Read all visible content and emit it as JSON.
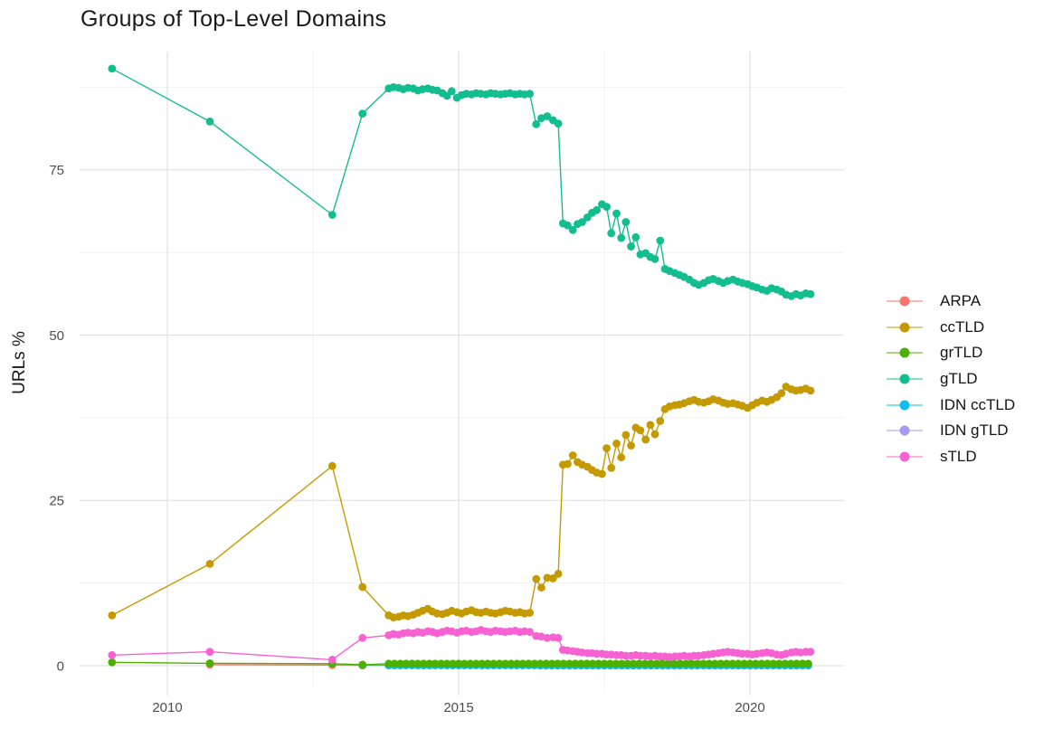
{
  "title": "Groups of Top-Level Domains",
  "axes": {
    "y_label": "URLs %",
    "x_tick_labels": [
      "2010",
      "2015",
      "2020"
    ],
    "y_tick_labels": [
      "0",
      "25",
      "50",
      "75"
    ]
  },
  "legend": {
    "items": [
      {
        "label": "ARPA",
        "color": "#F8766D"
      },
      {
        "label": "ccTLD",
        "color": "#C49A00"
      },
      {
        "label": "grTLD",
        "color": "#4CB000"
      },
      {
        "label": "gTLD",
        "color": "#12BE8D"
      },
      {
        "label": "IDN ccTLD",
        "color": "#0FBDEB"
      },
      {
        "label": "IDN gTLD",
        "color": "#A79BF2"
      },
      {
        "label": "sTLD",
        "color": "#F762D2"
      }
    ]
  },
  "chart_data": {
    "type": "line",
    "title": "Groups of Top-Level Domains",
    "xlabel": "",
    "ylabel": "URLs %",
    "xlim": [
      2008.5,
      2021.6
    ],
    "ylim": [
      -1,
      93
    ],
    "x_ticks": [
      2010,
      2015,
      2020
    ],
    "x_minor": [
      2012.5,
      2017.5
    ],
    "y_ticks": [
      0,
      25,
      50,
      75
    ],
    "y_minor": [
      12.5,
      37.5,
      62.5,
      87.5
    ],
    "grid": true,
    "legend_position": "right",
    "series": [
      {
        "name": "ARPA",
        "color": "#F8766D",
        "points": [
          [
            2010.73,
            0.15
          ],
          [
            2012.83,
            0.1
          ],
          [
            2013.35,
            0.05
          ]
        ]
      },
      {
        "name": "ccTLD",
        "color": "#C49A00",
        "points": [
          [
            2009.05,
            7.6
          ],
          [
            2010.73,
            15.4
          ],
          [
            2012.83,
            30.2
          ],
          [
            2013.35,
            11.9
          ],
          [
            2013.8,
            7.6
          ],
          [
            2013.88,
            7.3
          ],
          [
            2013.97,
            7.4
          ],
          [
            2014.05,
            7.6
          ],
          [
            2014.13,
            7.5
          ],
          [
            2014.22,
            7.7
          ],
          [
            2014.3,
            8.0
          ],
          [
            2014.38,
            8.3
          ],
          [
            2014.47,
            8.6
          ],
          [
            2014.55,
            8.2
          ],
          [
            2014.63,
            7.9
          ],
          [
            2014.72,
            7.8
          ],
          [
            2014.8,
            8.0
          ],
          [
            2014.88,
            8.3
          ],
          [
            2014.97,
            8.1
          ],
          [
            2015.05,
            7.9
          ],
          [
            2015.13,
            8.2
          ],
          [
            2015.22,
            8.4
          ],
          [
            2015.3,
            8.1
          ],
          [
            2015.38,
            8.0
          ],
          [
            2015.47,
            8.2
          ],
          [
            2015.55,
            8.0
          ],
          [
            2015.63,
            7.9
          ],
          [
            2015.72,
            8.1
          ],
          [
            2015.8,
            8.3
          ],
          [
            2015.88,
            8.2
          ],
          [
            2015.97,
            8.0
          ],
          [
            2016.05,
            8.1
          ],
          [
            2016.13,
            7.9
          ],
          [
            2016.22,
            8.0
          ],
          [
            2016.33,
            13.1
          ],
          [
            2016.42,
            11.8
          ],
          [
            2016.52,
            13.3
          ],
          [
            2016.62,
            13.2
          ],
          [
            2016.71,
            13.9
          ],
          [
            2016.79,
            30.4
          ],
          [
            2016.87,
            30.5
          ],
          [
            2016.96,
            31.8
          ],
          [
            2017.04,
            30.8
          ],
          [
            2017.12,
            30.4
          ],
          [
            2017.21,
            30.1
          ],
          [
            2017.29,
            29.6
          ],
          [
            2017.37,
            29.2
          ],
          [
            2017.46,
            29.0
          ],
          [
            2017.54,
            32.9
          ],
          [
            2017.62,
            29.9
          ],
          [
            2017.71,
            33.6
          ],
          [
            2017.79,
            31.5
          ],
          [
            2017.87,
            34.9
          ],
          [
            2017.96,
            33.3
          ],
          [
            2018.04,
            36.0
          ],
          [
            2018.12,
            35.6
          ],
          [
            2018.21,
            34.2
          ],
          [
            2018.29,
            36.4
          ],
          [
            2018.37,
            35.0
          ],
          [
            2018.46,
            37.0
          ],
          [
            2018.54,
            38.8
          ],
          [
            2018.62,
            39.2
          ],
          [
            2018.71,
            39.4
          ],
          [
            2018.79,
            39.5
          ],
          [
            2018.87,
            39.7
          ],
          [
            2018.96,
            40.0
          ],
          [
            2019.04,
            40.2
          ],
          [
            2019.12,
            39.9
          ],
          [
            2019.21,
            39.8
          ],
          [
            2019.29,
            40.0
          ],
          [
            2019.37,
            40.3
          ],
          [
            2019.46,
            40.1
          ],
          [
            2019.54,
            39.8
          ],
          [
            2019.62,
            39.6
          ],
          [
            2019.71,
            39.7
          ],
          [
            2019.79,
            39.5
          ],
          [
            2019.87,
            39.3
          ],
          [
            2019.96,
            39.0
          ],
          [
            2020.04,
            39.4
          ],
          [
            2020.12,
            39.8
          ],
          [
            2020.21,
            40.1
          ],
          [
            2020.29,
            39.9
          ],
          [
            2020.37,
            40.2
          ],
          [
            2020.46,
            40.6
          ],
          [
            2020.54,
            41.2
          ],
          [
            2020.62,
            42.2
          ],
          [
            2020.71,
            41.8
          ],
          [
            2020.79,
            41.6
          ],
          [
            2020.87,
            41.7
          ],
          [
            2020.96,
            41.9
          ],
          [
            2021.04,
            41.6
          ]
        ]
      },
      {
        "name": "grTLD",
        "color": "#4CB000",
        "points": [
          [
            2009.05,
            0.5
          ],
          [
            2010.73,
            0.35
          ],
          [
            2012.83,
            0.3
          ],
          [
            2013.35,
            0.15
          ]
        ],
        "flat": {
          "from": 2013.8,
          "to": 2021.05,
          "step": 0.1,
          "value": 0.3
        }
      },
      {
        "name": "gTLD",
        "color": "#12BE8D",
        "points": [
          [
            2009.05,
            90.3
          ],
          [
            2010.73,
            82.3
          ],
          [
            2012.83,
            68.2
          ],
          [
            2013.35,
            83.5
          ],
          [
            2013.8,
            87.3
          ],
          [
            2013.88,
            87.5
          ],
          [
            2013.97,
            87.4
          ],
          [
            2014.05,
            87.2
          ],
          [
            2014.13,
            87.4
          ],
          [
            2014.22,
            87.3
          ],
          [
            2014.3,
            87.0
          ],
          [
            2014.38,
            87.2
          ],
          [
            2014.47,
            87.3
          ],
          [
            2014.55,
            87.1
          ],
          [
            2014.63,
            87.0
          ],
          [
            2014.72,
            86.6
          ],
          [
            2014.8,
            86.2
          ],
          [
            2014.88,
            86.9
          ],
          [
            2014.97,
            85.9
          ],
          [
            2015.05,
            86.3
          ],
          [
            2015.13,
            86.5
          ],
          [
            2015.22,
            86.4
          ],
          [
            2015.3,
            86.6
          ],
          [
            2015.38,
            86.5
          ],
          [
            2015.47,
            86.4
          ],
          [
            2015.55,
            86.6
          ],
          [
            2015.63,
            86.5
          ],
          [
            2015.72,
            86.4
          ],
          [
            2015.8,
            86.5
          ],
          [
            2015.88,
            86.6
          ],
          [
            2015.97,
            86.4
          ],
          [
            2016.05,
            86.5
          ],
          [
            2016.13,
            86.4
          ],
          [
            2016.22,
            86.5
          ],
          [
            2016.33,
            81.9
          ],
          [
            2016.42,
            82.8
          ],
          [
            2016.52,
            83.1
          ],
          [
            2016.62,
            82.5
          ],
          [
            2016.71,
            82.0
          ],
          [
            2016.79,
            66.9
          ],
          [
            2016.87,
            66.6
          ],
          [
            2016.96,
            65.9
          ],
          [
            2017.04,
            66.8
          ],
          [
            2017.12,
            67.1
          ],
          [
            2017.21,
            67.8
          ],
          [
            2017.29,
            68.5
          ],
          [
            2017.37,
            68.9
          ],
          [
            2017.46,
            69.8
          ],
          [
            2017.54,
            69.4
          ],
          [
            2017.62,
            65.4
          ],
          [
            2017.71,
            68.4
          ],
          [
            2017.79,
            64.7
          ],
          [
            2017.87,
            67.1
          ],
          [
            2017.96,
            63.4
          ],
          [
            2018.04,
            64.8
          ],
          [
            2018.12,
            62.2
          ],
          [
            2018.21,
            62.4
          ],
          [
            2018.29,
            61.8
          ],
          [
            2018.37,
            61.5
          ],
          [
            2018.46,
            64.3
          ],
          [
            2018.54,
            60.0
          ],
          [
            2018.62,
            59.7
          ],
          [
            2018.71,
            59.4
          ],
          [
            2018.79,
            59.1
          ],
          [
            2018.87,
            58.8
          ],
          [
            2018.96,
            58.4
          ],
          [
            2019.04,
            57.9
          ],
          [
            2019.12,
            57.6
          ],
          [
            2019.21,
            57.9
          ],
          [
            2019.29,
            58.3
          ],
          [
            2019.37,
            58.5
          ],
          [
            2019.46,
            58.2
          ],
          [
            2019.54,
            57.9
          ],
          [
            2019.62,
            58.2
          ],
          [
            2019.71,
            58.4
          ],
          [
            2019.79,
            58.1
          ],
          [
            2019.87,
            57.9
          ],
          [
            2019.96,
            57.7
          ],
          [
            2020.04,
            57.4
          ],
          [
            2020.12,
            57.2
          ],
          [
            2020.21,
            56.9
          ],
          [
            2020.29,
            56.7
          ],
          [
            2020.37,
            57.1
          ],
          [
            2020.46,
            56.9
          ],
          [
            2020.54,
            56.6
          ],
          [
            2020.62,
            56.1
          ],
          [
            2020.71,
            55.9
          ],
          [
            2020.79,
            56.2
          ],
          [
            2020.87,
            56.0
          ],
          [
            2020.96,
            56.3
          ],
          [
            2021.04,
            56.2
          ]
        ]
      },
      {
        "name": "IDN ccTLD",
        "color": "#0FBDEB",
        "points": [
          [
            2013.35,
            0.05
          ]
        ],
        "flat": {
          "from": 2013.8,
          "to": 2021.05,
          "step": 0.1,
          "value": 0.05
        }
      },
      {
        "name": "IDN gTLD",
        "color": "#A79BF2",
        "points": [],
        "flat": {
          "from": 2016.4,
          "to": 2021.05,
          "step": 0.1,
          "value": 0.02
        }
      },
      {
        "name": "sTLD",
        "color": "#F762D2",
        "points": [
          [
            2009.05,
            1.6
          ],
          [
            2010.73,
            2.1
          ],
          [
            2012.83,
            0.9
          ],
          [
            2013.35,
            4.2
          ],
          [
            2013.8,
            4.6
          ],
          [
            2013.88,
            4.8
          ],
          [
            2013.97,
            4.7
          ],
          [
            2014.05,
            4.9
          ],
          [
            2014.13,
            5.0
          ],
          [
            2014.22,
            4.9
          ],
          [
            2014.3,
            5.1
          ],
          [
            2014.38,
            5.0
          ],
          [
            2014.47,
            5.2
          ],
          [
            2014.55,
            5.1
          ],
          [
            2014.63,
            4.9
          ],
          [
            2014.72,
            5.1
          ],
          [
            2014.8,
            5.3
          ],
          [
            2014.88,
            5.2
          ],
          [
            2014.97,
            5.0
          ],
          [
            2015.05,
            5.2
          ],
          [
            2015.13,
            5.3
          ],
          [
            2015.22,
            5.1
          ],
          [
            2015.3,
            5.2
          ],
          [
            2015.38,
            5.4
          ],
          [
            2015.47,
            5.2
          ],
          [
            2015.55,
            5.1
          ],
          [
            2015.63,
            5.3
          ],
          [
            2015.72,
            5.2
          ],
          [
            2015.8,
            5.1
          ],
          [
            2015.88,
            5.2
          ],
          [
            2015.97,
            5.3
          ],
          [
            2016.05,
            5.1
          ],
          [
            2016.13,
            5.2
          ],
          [
            2016.22,
            5.1
          ],
          [
            2016.33,
            4.5
          ],
          [
            2016.42,
            4.4
          ],
          [
            2016.52,
            4.2
          ],
          [
            2016.62,
            4.3
          ],
          [
            2016.71,
            4.2
          ],
          [
            2016.79,
            2.4
          ],
          [
            2016.87,
            2.3
          ],
          [
            2016.96,
            2.2
          ],
          [
            2017.04,
            2.1
          ],
          [
            2017.12,
            2.0
          ],
          [
            2017.21,
            1.9
          ],
          [
            2017.29,
            1.9
          ],
          [
            2017.37,
            1.8
          ],
          [
            2017.46,
            1.8
          ],
          [
            2017.54,
            1.7
          ],
          [
            2017.62,
            1.7
          ],
          [
            2017.71,
            1.6
          ],
          [
            2017.79,
            1.6
          ],
          [
            2017.87,
            1.5
          ],
          [
            2017.96,
            1.5
          ],
          [
            2018.04,
            1.6
          ],
          [
            2018.12,
            1.5
          ],
          [
            2018.21,
            1.5
          ],
          [
            2018.29,
            1.4
          ],
          [
            2018.37,
            1.5
          ],
          [
            2018.46,
            1.4
          ],
          [
            2018.54,
            1.4
          ],
          [
            2018.62,
            1.3
          ],
          [
            2018.71,
            1.4
          ],
          [
            2018.79,
            1.4
          ],
          [
            2018.87,
            1.5
          ],
          [
            2018.96,
            1.4
          ],
          [
            2019.04,
            1.5
          ],
          [
            2019.12,
            1.5
          ],
          [
            2019.21,
            1.6
          ],
          [
            2019.29,
            1.7
          ],
          [
            2019.37,
            1.8
          ],
          [
            2019.46,
            1.9
          ],
          [
            2019.54,
            2.0
          ],
          [
            2019.62,
            2.1
          ],
          [
            2019.71,
            2.0
          ],
          [
            2019.79,
            1.9
          ],
          [
            2019.87,
            1.8
          ],
          [
            2019.96,
            1.8
          ],
          [
            2020.04,
            1.7
          ],
          [
            2020.12,
            1.8
          ],
          [
            2020.21,
            1.9
          ],
          [
            2020.29,
            2.0
          ],
          [
            2020.37,
            1.9
          ],
          [
            2020.46,
            1.7
          ],
          [
            2020.54,
            1.6
          ],
          [
            2020.62,
            1.8
          ],
          [
            2020.71,
            2.0
          ],
          [
            2020.79,
            2.1
          ],
          [
            2020.87,
            2.0
          ],
          [
            2020.96,
            2.1
          ],
          [
            2021.04,
            2.1
          ]
        ]
      }
    ]
  }
}
